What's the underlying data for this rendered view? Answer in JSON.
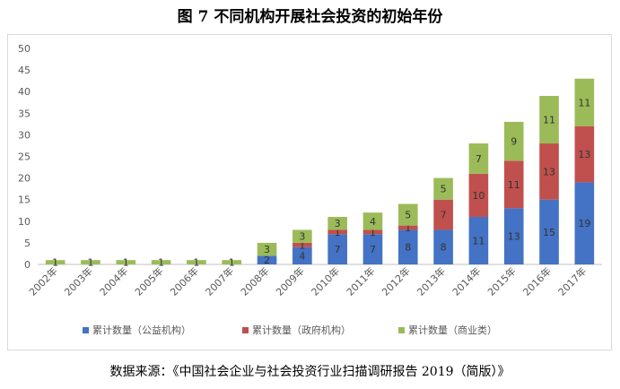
{
  "title": "图 7  不同机构开展社会投资的初始年份",
  "source": "数据来源：《中国社会企业与社会投资行业扫描调研报告 2019（简版）》",
  "chart_data": {
    "type": "bar",
    "stacked": true,
    "categories": [
      "2002年",
      "2003年",
      "2004年",
      "2005年",
      "2006年",
      "2007年",
      "2008年",
      "2009年",
      "2010年",
      "2011年",
      "2012年",
      "2013年",
      "2014年",
      "2015年",
      "2016年",
      "2017年"
    ],
    "series": [
      {
        "name": "累计数量（公益机构）",
        "color": "#4472c4",
        "values": [
          0,
          0,
          0,
          0,
          0,
          0,
          2,
          4,
          7,
          7,
          8,
          8,
          11,
          13,
          15,
          19
        ]
      },
      {
        "name": "累计数量（政府机构）",
        "color": "#c0504d",
        "values": [
          0,
          0,
          0,
          0,
          0,
          0,
          0,
          1,
          1,
          1,
          1,
          7,
          10,
          11,
          13,
          13
        ]
      },
      {
        "name": "累计数量（商业类）",
        "color": "#9bbb59",
        "values": [
          1,
          1,
          1,
          1,
          1,
          1,
          3,
          3,
          3,
          4,
          5,
          5,
          7,
          9,
          11,
          11
        ]
      }
    ],
    "ylim": [
      0,
      50
    ],
    "yticks": [
      0,
      5,
      10,
      15,
      20,
      25,
      30,
      35,
      40,
      45,
      50
    ],
    "legend_position": "bottom",
    "grid": false
  }
}
